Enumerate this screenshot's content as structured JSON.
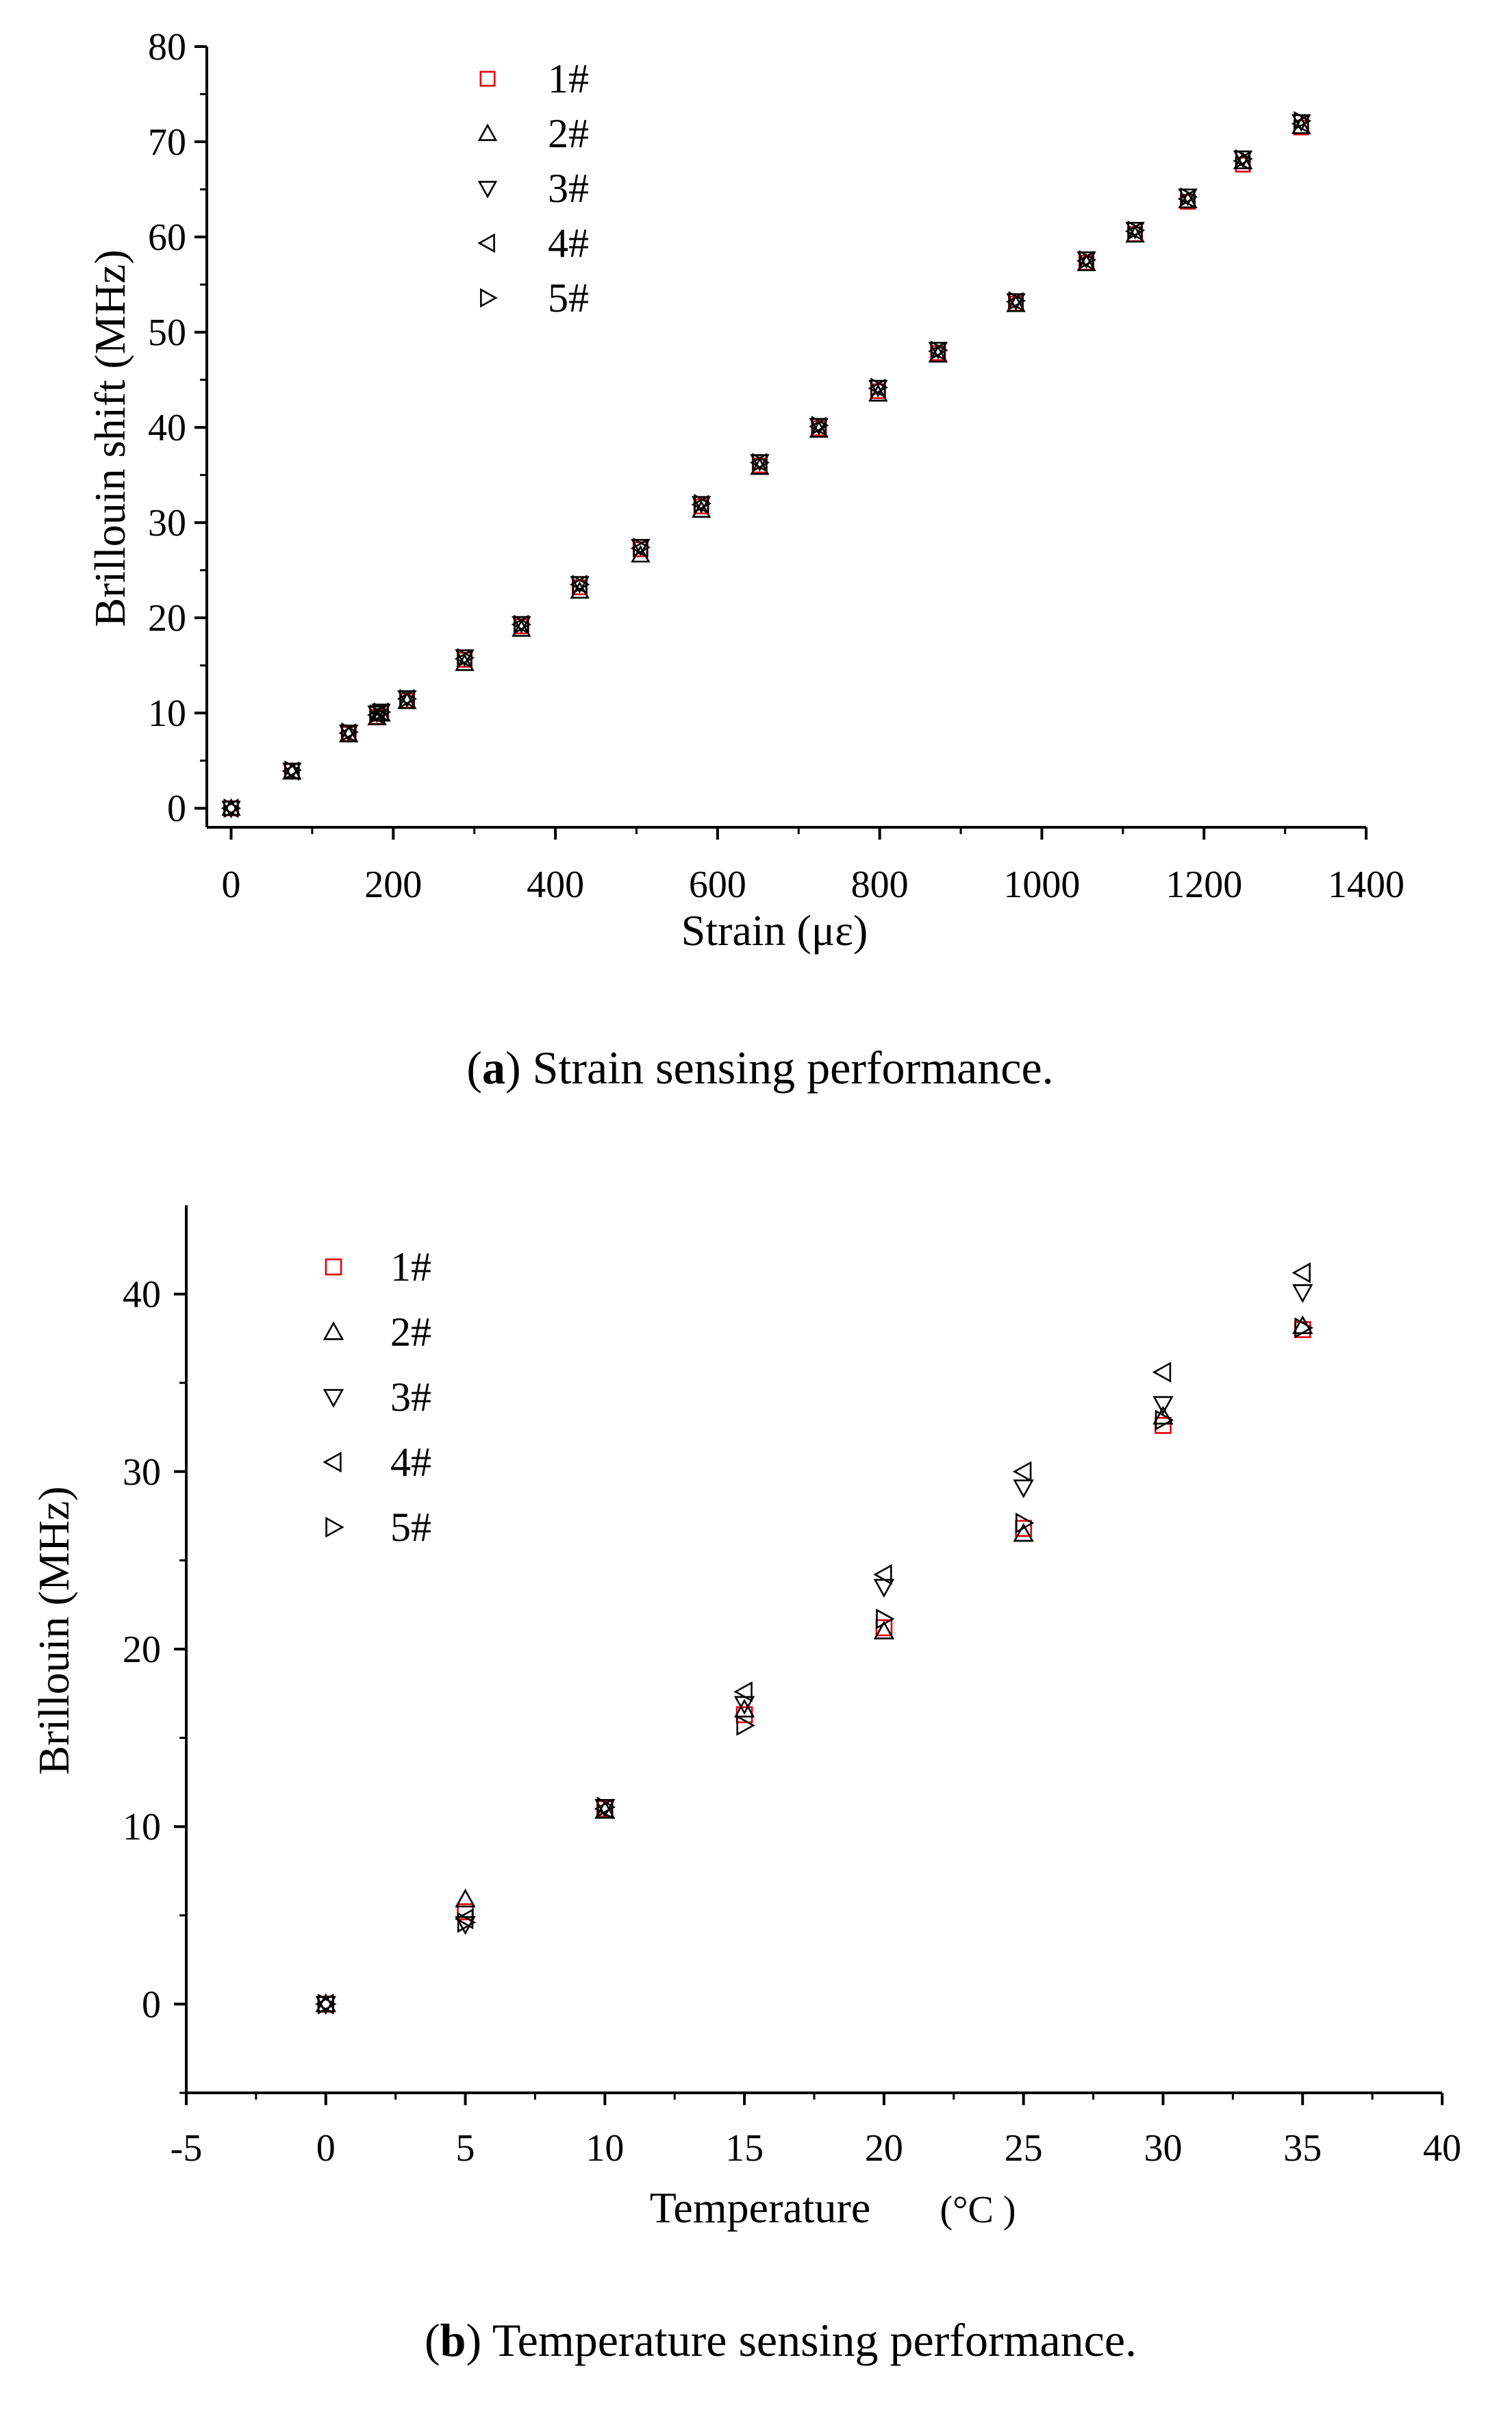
{
  "chart_data": [
    {
      "type": "scatter",
      "caption_id": "a",
      "caption_text": " Strain sensing performance.",
      "caption_open": "(",
      "caption_close": ")",
      "xlabel": "Strain (με)",
      "ylabel": "Brillouin shift (MHz)",
      "xlim": [
        -30,
        1400
      ],
      "ylim": [
        -2,
        80
      ],
      "xticks": [
        0,
        200,
        400,
        600,
        800,
        1000,
        1200,
        1400
      ],
      "yticks": [
        0,
        10,
        20,
        30,
        40,
        50,
        60,
        70,
        80
      ],
      "legend_position": "top-left",
      "series": [
        {
          "name": "1#",
          "marker": "square",
          "color": "#e8000b",
          "x": [
            0,
            75,
            145,
            180,
            185,
            217,
            288,
            358,
            430,
            505,
            580,
            652,
            725,
            798,
            872,
            968,
            1055,
            1115,
            1180,
            1248,
            1320
          ],
          "y": [
            0,
            3.9,
            7.8,
            9.6,
            10.0,
            11.3,
            15.6,
            19.1,
            23.2,
            27.2,
            31.7,
            36.0,
            39.9,
            43.8,
            47.8,
            53.0,
            57.3,
            60.3,
            63.7,
            67.6,
            71.5
          ]
        },
        {
          "name": "2#",
          "marker": "triangle-up",
          "color": "#000000",
          "x": [
            0,
            75,
            145,
            180,
            185,
            217,
            288,
            358,
            430,
            505,
            580,
            652,
            725,
            798,
            872,
            968,
            1055,
            1115,
            1180,
            1248,
            1320
          ],
          "y": [
            0,
            3.8,
            7.7,
            9.5,
            9.9,
            11.2,
            15.2,
            18.8,
            22.8,
            26.6,
            31.3,
            35.8,
            39.7,
            43.5,
            47.6,
            52.9,
            57.2,
            60.2,
            63.8,
            67.9,
            71.6
          ]
        },
        {
          "name": "3#",
          "marker": "triangle-down",
          "color": "#000000",
          "x": [
            0,
            75,
            145,
            180,
            185,
            217,
            288,
            358,
            430,
            505,
            580,
            652,
            725,
            798,
            872,
            968,
            1055,
            1115,
            1180,
            1248,
            1320
          ],
          "y": [
            0,
            4.0,
            8.0,
            10.0,
            10.2,
            11.6,
            15.9,
            19.4,
            23.6,
            27.5,
            32.0,
            36.4,
            40.2,
            44.2,
            48.2,
            53.3,
            57.7,
            60.8,
            64.3,
            68.3,
            72.1
          ]
        },
        {
          "name": "4#",
          "marker": "triangle-left",
          "color": "#000000",
          "x": [
            0,
            75,
            145,
            180,
            185,
            217,
            288,
            358,
            430,
            505,
            580,
            652,
            725,
            798,
            872,
            968,
            1055,
            1115,
            1180,
            1248,
            1320
          ],
          "y": [
            0,
            3.9,
            7.9,
            9.8,
            10.1,
            11.5,
            15.7,
            19.3,
            23.5,
            27.3,
            31.9,
            36.3,
            40.1,
            44.1,
            48.0,
            53.2,
            57.5,
            60.6,
            64.0,
            68.0,
            71.9
          ]
        },
        {
          "name": "5#",
          "marker": "triangle-right",
          "color": "#000000",
          "x": [
            0,
            75,
            145,
            180,
            185,
            217,
            288,
            358,
            430,
            505,
            580,
            652,
            725,
            798,
            872,
            968,
            1055,
            1115,
            1180,
            1248,
            1320
          ],
          "y": [
            0,
            4.0,
            8.0,
            9.9,
            10.1,
            11.5,
            15.8,
            19.3,
            23.5,
            27.4,
            32.0,
            36.3,
            40.2,
            44.2,
            48.1,
            53.3,
            57.6,
            60.7,
            64.2,
            68.2,
            72.2
          ]
        }
      ]
    },
    {
      "type": "scatter",
      "caption_id": "b",
      "caption_text": " Temperature sensing performance.",
      "caption_open": "(",
      "caption_close": ")",
      "xlabel": "Temperature",
      "xlabel_unit": "(°C )",
      "ylabel": "Brillouin (MHz)",
      "xlim": [
        -5,
        40
      ],
      "ylim": [
        -5,
        45
      ],
      "xticks": [
        -5,
        0,
        5,
        10,
        15,
        20,
        25,
        30,
        35,
        40
      ],
      "yticks": [
        0,
        10,
        20,
        30,
        40
      ],
      "legend_position": "top-left",
      "series": [
        {
          "name": "1#",
          "marker": "square",
          "color": "#e8000b",
          "x": [
            0,
            5,
            10,
            15,
            20,
            25,
            30,
            35
          ],
          "y": [
            0,
            5.2,
            11.0,
            16.3,
            21.2,
            26.8,
            32.6,
            38.0
          ]
        },
        {
          "name": "2#",
          "marker": "triangle-up",
          "color": "#000000",
          "x": [
            0,
            5,
            10,
            15,
            20,
            25,
            30,
            35
          ],
          "y": [
            0,
            5.9,
            10.9,
            16.6,
            21.0,
            26.5,
            33.1,
            38.2
          ]
        },
        {
          "name": "3#",
          "marker": "triangle-down",
          "color": "#000000",
          "x": [
            0,
            5,
            10,
            15,
            20,
            25,
            30,
            35
          ],
          "y": [
            0,
            4.5,
            11.1,
            16.9,
            23.5,
            29.1,
            33.8,
            40.1
          ]
        },
        {
          "name": "4#",
          "marker": "triangle-left",
          "color": "#000000",
          "x": [
            0,
            5,
            10,
            15,
            20,
            25,
            30,
            35
          ],
          "y": [
            0,
            4.8,
            11.0,
            17.6,
            24.2,
            30.0,
            35.6,
            41.2
          ]
        },
        {
          "name": "5#",
          "marker": "triangle-right",
          "color": "#000000",
          "x": [
            0,
            5,
            10,
            15,
            20,
            25,
            30,
            35
          ],
          "y": [
            0,
            4.6,
            11.1,
            15.7,
            21.7,
            27.1,
            32.9,
            38.1
          ]
        }
      ]
    }
  ]
}
